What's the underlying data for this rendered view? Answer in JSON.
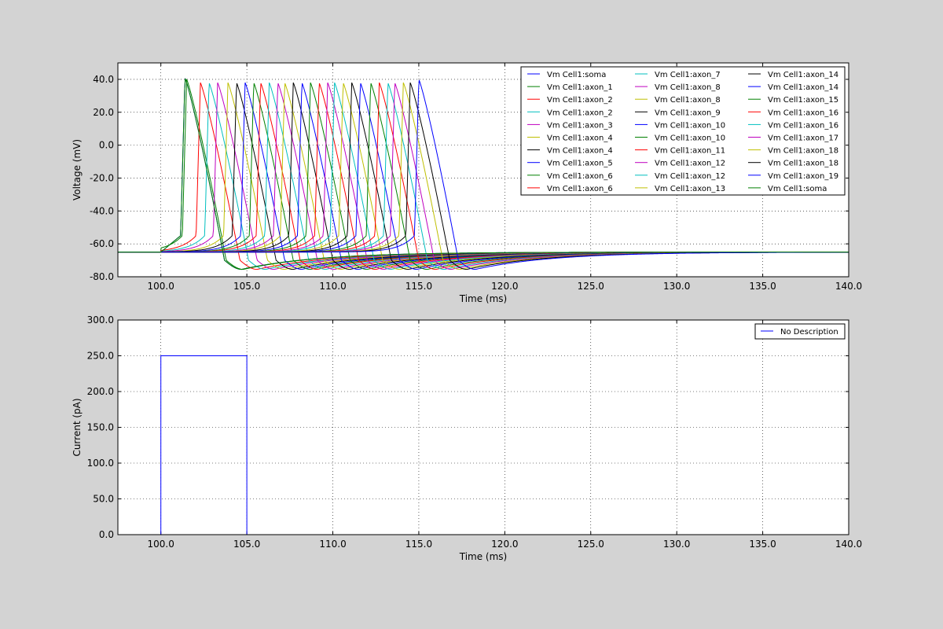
{
  "figure": {
    "background": "#d3d3d3"
  },
  "chart_data": [
    {
      "type": "line",
      "xlabel": "Time (ms)",
      "ylabel": "Voltage (mV)",
      "xlim": [
        97.5,
        140.0
      ],
      "ylim": [
        -80.0,
        50.0
      ],
      "grid": true,
      "legend_placement": "top-right",
      "legend_columns": 3,
      "x_ticks": [
        "100.0",
        "105.0",
        "110.0",
        "115.0",
        "120.0",
        "125.0",
        "130.0",
        "135.0",
        "140.0"
      ],
      "y_ticks": [
        "-80.0",
        "-60.0",
        "-40.0",
        "-20.0",
        "0.0",
        "20.0",
        "40.0"
      ],
      "rest_potential": -65,
      "stimulus_onset": 100.0,
      "series": [
        {
          "name": "Vm Cell1:soma",
          "color": "#0000ff",
          "spike_time": 101.4,
          "peak": 41
        },
        {
          "name": "Vm Cell1:axon_1",
          "color": "#008000",
          "spike_time": 101.5,
          "peak": 40
        },
        {
          "name": "Vm Cell1:axon_2",
          "color": "#ff0000",
          "spike_time": 102.3,
          "peak": 38
        },
        {
          "name": "Vm Cell1:axon_2",
          "color": "#00bfbf",
          "spike_time": 102.8,
          "peak": 38
        },
        {
          "name": "Vm Cell1:axon_3",
          "color": "#bf00bf",
          "spike_time": 103.3,
          "peak": 38
        },
        {
          "name": "Vm Cell1:axon_4",
          "color": "#bfbf00",
          "spike_time": 103.9,
          "peak": 38
        },
        {
          "name": "Vm Cell1:axon_4",
          "color": "#000000",
          "spike_time": 104.4,
          "peak": 38
        },
        {
          "name": "Vm Cell1:axon_5",
          "color": "#0000ff",
          "spike_time": 104.9,
          "peak": 38
        },
        {
          "name": "Vm Cell1:axon_6",
          "color": "#008000",
          "spike_time": 105.4,
          "peak": 38
        },
        {
          "name": "Vm Cell1:axon_6",
          "color": "#ff0000",
          "spike_time": 105.8,
          "peak": 38
        },
        {
          "name": "Vm Cell1:axon_7",
          "color": "#00bfbf",
          "spike_time": 106.3,
          "peak": 38
        },
        {
          "name": "Vm Cell1:axon_8",
          "color": "#bf00bf",
          "spike_time": 106.8,
          "peak": 38
        },
        {
          "name": "Vm Cell1:axon_8",
          "color": "#bfbf00",
          "spike_time": 107.2,
          "peak": 38
        },
        {
          "name": "Vm Cell1:axon_9",
          "color": "#000000",
          "spike_time": 107.7,
          "peak": 38
        },
        {
          "name": "Vm Cell1:axon_10",
          "color": "#0000ff",
          "spike_time": 108.2,
          "peak": 38
        },
        {
          "name": "Vm Cell1:axon_10",
          "color": "#008000",
          "spike_time": 108.7,
          "peak": 38
        },
        {
          "name": "Vm Cell1:axon_11",
          "color": "#ff0000",
          "spike_time": 109.2,
          "peak": 38
        },
        {
          "name": "Vm Cell1:axon_12",
          "color": "#bf00bf",
          "spike_time": 109.7,
          "peak": 38
        },
        {
          "name": "Vm Cell1:axon_12",
          "color": "#00bfbf",
          "spike_time": 110.1,
          "peak": 38
        },
        {
          "name": "Vm Cell1:axon_13",
          "color": "#bfbf00",
          "spike_time": 110.6,
          "peak": 38
        },
        {
          "name": "Vm Cell1:axon_14",
          "color": "#000000",
          "spike_time": 111.1,
          "peak": 38
        },
        {
          "name": "Vm Cell1:axon_14",
          "color": "#0000ff",
          "spike_time": 111.6,
          "peak": 38
        },
        {
          "name": "Vm Cell1:axon_15",
          "color": "#008000",
          "spike_time": 112.2,
          "peak": 38
        },
        {
          "name": "Vm Cell1:axon_16",
          "color": "#ff0000",
          "spike_time": 112.7,
          "peak": 38
        },
        {
          "name": "Vm Cell1:axon_16",
          "color": "#00bfbf",
          "spike_time": 113.2,
          "peak": 38
        },
        {
          "name": "Vm Cell1:axon_17",
          "color": "#bf00bf",
          "spike_time": 113.6,
          "peak": 38
        },
        {
          "name": "Vm Cell1:axon_18",
          "color": "#bfbf00",
          "spike_time": 114.1,
          "peak": 38
        },
        {
          "name": "Vm Cell1:axon_18",
          "color": "#000000",
          "spike_time": 114.5,
          "peak": 38
        },
        {
          "name": "Vm Cell1:axon_19",
          "color": "#0000ff",
          "spike_time": 115.0,
          "peak": 40
        },
        {
          "name": "Vm Cell1:soma",
          "color": "#008000",
          "spike_time": 101.4,
          "peak": 41
        }
      ]
    },
    {
      "type": "line",
      "xlabel": "Time (ms)",
      "ylabel": "Current (pA)",
      "xlim": [
        97.5,
        140.0
      ],
      "ylim": [
        0.0,
        300.0
      ],
      "grid": true,
      "legend_placement": "top-right",
      "x_ticks": [
        "100.0",
        "105.0",
        "110.0",
        "115.0",
        "120.0",
        "125.0",
        "130.0",
        "135.0",
        "140.0"
      ],
      "y_ticks": [
        "0.0",
        "50.0",
        "100.0",
        "150.0",
        "200.0",
        "250.0",
        "300.0"
      ],
      "series": [
        {
          "name": "No Description",
          "color": "#0000ff",
          "x": [
            97.5,
            100.0,
            100.0,
            105.0,
            105.0,
            140.0
          ],
          "y": [
            0,
            0,
            250,
            250,
            0,
            0
          ]
        }
      ]
    }
  ]
}
